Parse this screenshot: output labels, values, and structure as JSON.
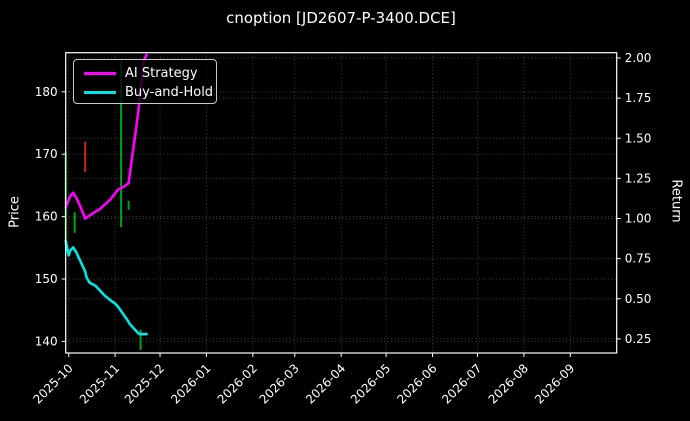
{
  "title": "cnoption [JD2607-P-3400.DCE]",
  "axes": {
    "left_label": "Price",
    "right_label": "Return",
    "x_start": "2025-09-29",
    "x_end": "2026-10-02"
  },
  "legend": {
    "items": [
      {
        "label": "AI Strategy",
        "color": "#FF00FF"
      },
      {
        "label": "Buy-and-Hold",
        "color": "#00E5E5"
      }
    ]
  },
  "colors": {
    "background": "#000000",
    "grid": "#474747",
    "axis": "#FFFFFF",
    "buy_signal": "#00A31E",
    "sell_signal": "#C3291B",
    "ai_strategy": "#FF00FF",
    "buy_and_hold": "#00E5E5"
  },
  "chart_data": {
    "type": "line",
    "title": "cnoption [JD2607-P-3400.DCE]",
    "xlabel": "",
    "ylabel_left": "Price",
    "ylabel_right": "Return",
    "grid": true,
    "legend_position": "upper-left",
    "x_ticks": [
      {
        "date": "2025-10-01",
        "label": "2025-10"
      },
      {
        "date": "2025-11-01",
        "label": "2025-11"
      },
      {
        "date": "2025-12-01",
        "label": "2025-12"
      },
      {
        "date": "2026-01-01",
        "label": "2026-01"
      },
      {
        "date": "2026-02-01",
        "label": "2026-02"
      },
      {
        "date": "2026-03-01",
        "label": "2026-03"
      },
      {
        "date": "2026-04-01",
        "label": "2026-04"
      },
      {
        "date": "2026-05-01",
        "label": "2026-05"
      },
      {
        "date": "2026-06-01",
        "label": "2026-06"
      },
      {
        "date": "2026-07-01",
        "label": "2026-07"
      },
      {
        "date": "2026-08-01",
        "label": "2026-08"
      },
      {
        "date": "2026-09-01",
        "label": "2026-09"
      }
    ],
    "price_axis": {
      "ticks": [
        140,
        150,
        160,
        170,
        180
      ],
      "range": [
        138.1,
        186.3
      ]
    },
    "return_axis": {
      "ticks": [
        0.25,
        0.5,
        0.75,
        1.0,
        1.25,
        1.5,
        1.75,
        2.0
      ],
      "range": [
        0.16,
        2.03
      ]
    },
    "series": [
      {
        "name": "AI Strategy",
        "axis": "return",
        "color": "#FF00FF",
        "points": [
          [
            "2025-09-29",
            1.07
          ],
          [
            "2025-10-02",
            1.14
          ],
          [
            "2025-10-04",
            1.16
          ],
          [
            "2025-10-06",
            1.13
          ],
          [
            "2025-10-09",
            1.07
          ],
          [
            "2025-10-12",
            1.0
          ],
          [
            "2025-10-15",
            1.02
          ],
          [
            "2025-10-22",
            1.06
          ],
          [
            "2025-10-29",
            1.12
          ],
          [
            "2025-11-03",
            1.18
          ],
          [
            "2025-11-07",
            1.2
          ],
          [
            "2025-11-10",
            1.22
          ],
          [
            "2025-11-12",
            1.36
          ],
          [
            "2025-11-15",
            1.56
          ],
          [
            "2025-11-17",
            1.71
          ],
          [
            "2025-11-19",
            1.88
          ],
          [
            "2025-11-20",
            1.98
          ],
          [
            "2025-11-22",
            2.02
          ]
        ]
      },
      {
        "name": "Buy-and-Hold",
        "axis": "return",
        "color": "#00E5E5",
        "points": [
          [
            "2025-09-29",
            0.86
          ],
          [
            "2025-10-01",
            0.77
          ],
          [
            "2025-10-02",
            0.8
          ],
          [
            "2025-10-04",
            0.82
          ],
          [
            "2025-10-06",
            0.79
          ],
          [
            "2025-10-09",
            0.73
          ],
          [
            "2025-10-12",
            0.67
          ],
          [
            "2025-10-13",
            0.63
          ],
          [
            "2025-10-15",
            0.6
          ],
          [
            "2025-10-19",
            0.58
          ],
          [
            "2025-10-22",
            0.55
          ],
          [
            "2025-10-25",
            0.52
          ],
          [
            "2025-10-29",
            0.49
          ],
          [
            "2025-11-01",
            0.47
          ],
          [
            "2025-11-03",
            0.45
          ],
          [
            "2025-11-06",
            0.41
          ],
          [
            "2025-11-09",
            0.37
          ],
          [
            "2025-11-11",
            0.34
          ],
          [
            "2025-11-13",
            0.32
          ],
          [
            "2025-11-15",
            0.3
          ],
          [
            "2025-11-17",
            0.28
          ],
          [
            "2025-11-22",
            0.28
          ]
        ]
      }
    ],
    "signal_bars": [
      {
        "date": "2025-09-29",
        "type": "buy",
        "price_low": 155.4,
        "price_high": 170.4
      },
      {
        "date": "2025-10-05",
        "type": "buy",
        "price_low": 157.4,
        "price_high": 160.7
      },
      {
        "date": "2025-10-12",
        "type": "sell",
        "price_low": 167.1,
        "price_high": 172.0
      },
      {
        "date": "2025-11-05",
        "type": "buy",
        "price_low": 158.3,
        "price_high": 185.0
      },
      {
        "date": "2025-11-10",
        "type": "buy",
        "price_low": 161.1,
        "price_high": 162.5
      },
      {
        "date": "2025-11-18",
        "type": "buy",
        "price_low": 138.6,
        "price_high": 141.9
      }
    ]
  }
}
